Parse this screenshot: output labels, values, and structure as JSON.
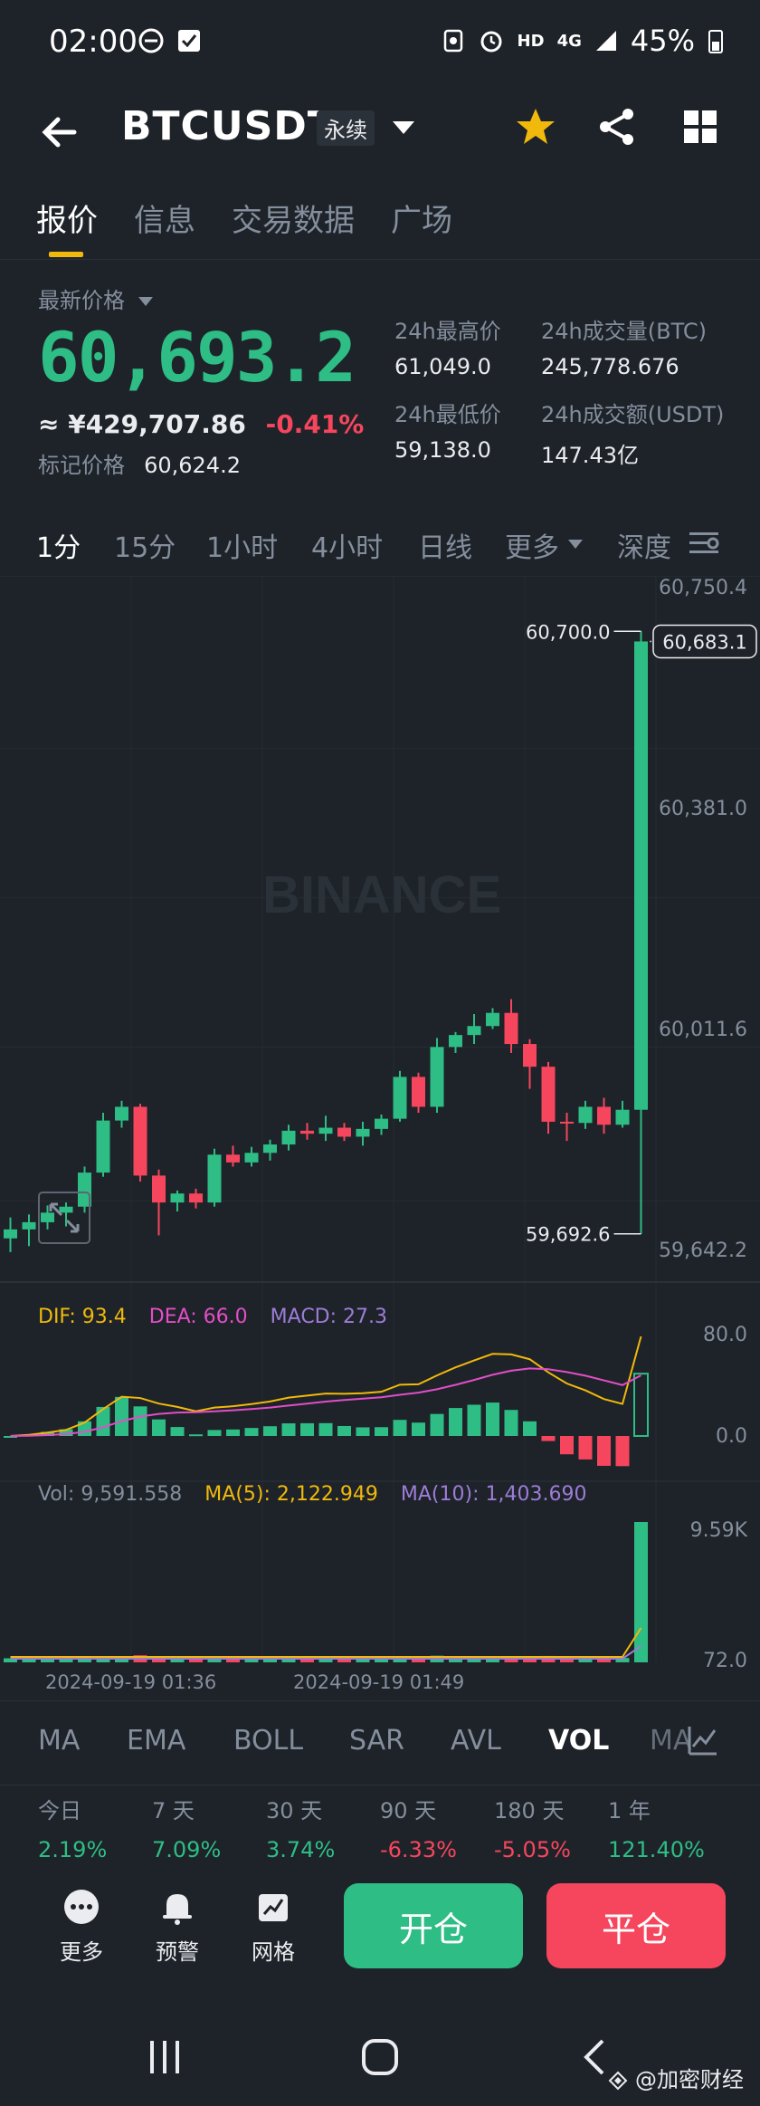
{
  "status": {
    "time": "02:00",
    "signal": "HD",
    "network": "4G",
    "battery": "45%"
  },
  "header": {
    "pair": "BTCUSDT",
    "contract_type": "永续"
  },
  "tabs": [
    "报价",
    "信息",
    "交易数据",
    "广场"
  ],
  "price": {
    "latest_label": "最新价格",
    "last": "60,693.2",
    "cny": "≈ ¥429,707.86",
    "change": "-0.41%",
    "mark_label": "标记价格",
    "mark": "60,624.2"
  },
  "stats": {
    "high_label": "24h最高价",
    "high": "61,049.0",
    "low_label": "24h最低价",
    "low": "59,138.0",
    "vol_btc_label": "24h成交量(BTC)",
    "vol_btc": "245,778.676",
    "vol_usdt_label": "24h成交额(USDT)",
    "vol_usdt": "147.43亿"
  },
  "intervals": [
    "1分",
    "15分",
    "1小时",
    "4小时",
    "日线",
    "更多",
    "深度"
  ],
  "chart_data": {
    "type": "candlestick",
    "watermark": "BINANCE",
    "y_ticks": [
      "60,750.4",
      "60,381.0",
      "60,011.6",
      "59,642.2"
    ],
    "last_price_tag": "60,683.1",
    "high_marker": "60,700.0",
    "low_marker": "59,692.6",
    "candles": [
      {
        "o": 59685,
        "h": 59720,
        "l": 59662,
        "c": 59700
      },
      {
        "o": 59700,
        "h": 59725,
        "l": 59672,
        "c": 59712
      },
      {
        "o": 59712,
        "h": 59740,
        "l": 59700,
        "c": 59728
      },
      {
        "o": 59728,
        "h": 59745,
        "l": 59705,
        "c": 59738
      },
      {
        "o": 59738,
        "h": 59805,
        "l": 59728,
        "c": 59795
      },
      {
        "o": 59795,
        "h": 59895,
        "l": 59788,
        "c": 59882
      },
      {
        "o": 59882,
        "h": 59915,
        "l": 59870,
        "c": 59905
      },
      {
        "o": 59905,
        "h": 59910,
        "l": 59780,
        "c": 59790
      },
      {
        "o": 59790,
        "h": 59800,
        "l": 59690,
        "c": 59745
      },
      {
        "o": 59745,
        "h": 59765,
        "l": 59730,
        "c": 59760
      },
      {
        "o": 59760,
        "h": 59768,
        "l": 59735,
        "c": 59745
      },
      {
        "o": 59745,
        "h": 59835,
        "l": 59738,
        "c": 59825
      },
      {
        "o": 59825,
        "h": 59840,
        "l": 59805,
        "c": 59812
      },
      {
        "o": 59812,
        "h": 59838,
        "l": 59805,
        "c": 59828
      },
      {
        "o": 59828,
        "h": 59850,
        "l": 59815,
        "c": 59842
      },
      {
        "o": 59842,
        "h": 59875,
        "l": 59832,
        "c": 59865
      },
      {
        "o": 59865,
        "h": 59878,
        "l": 59850,
        "c": 59860
      },
      {
        "o": 59860,
        "h": 59890,
        "l": 59848,
        "c": 59870
      },
      {
        "o": 59870,
        "h": 59878,
        "l": 59848,
        "c": 59855
      },
      {
        "o": 59855,
        "h": 59880,
        "l": 59840,
        "c": 59868
      },
      {
        "o": 59868,
        "h": 59892,
        "l": 59858,
        "c": 59885
      },
      {
        "o": 59885,
        "h": 59965,
        "l": 59880,
        "c": 59955
      },
      {
        "o": 59955,
        "h": 59962,
        "l": 59895,
        "c": 59905
      },
      {
        "o": 59905,
        "h": 60020,
        "l": 59895,
        "c": 60005
      },
      {
        "o": 60005,
        "h": 60030,
        "l": 59995,
        "c": 60025
      },
      {
        "o": 60025,
        "h": 60060,
        "l": 60010,
        "c": 60040
      },
      {
        "o": 60040,
        "h": 60070,
        "l": 60035,
        "c": 60062
      },
      {
        "o": 60062,
        "h": 60085,
        "l": 59995,
        "c": 60010
      },
      {
        "o": 60010,
        "h": 60018,
        "l": 59935,
        "c": 59972
      },
      {
        "o": 59972,
        "h": 59980,
        "l": 59860,
        "c": 59880
      },
      {
        "o": 59880,
        "h": 59895,
        "l": 59848,
        "c": 59878
      },
      {
        "o": 59878,
        "h": 59915,
        "l": 59868,
        "c": 59905
      },
      {
        "o": 59905,
        "h": 59920,
        "l": 59860,
        "c": 59875
      },
      {
        "o": 59875,
        "h": 59915,
        "l": 59870,
        "c": 59900
      },
      {
        "o": 59900,
        "h": 60700,
        "l": 59692.6,
        "c": 60683.1
      }
    ]
  },
  "macd": {
    "dif": "DIF: 93.4",
    "dea": "DEA: 66.0",
    "macd": "MACD: 27.3",
    "top": "80.0",
    "zero": "0.0"
  },
  "volume": {
    "vol": "Vol: 9,591.558",
    "ma5": "MA(5): 2,122.949",
    "ma10": "MA(10): 1,403.690",
    "top": "9.59K",
    "bottom": "72.0"
  },
  "time_labels": [
    "2024-09-19 01:36",
    "2024-09-19 01:49"
  ],
  "indicator_tabs": [
    "MA",
    "EMA",
    "BOLL",
    "SAR",
    "AVL",
    "VOL",
    "MA"
  ],
  "performance": [
    {
      "period": "今日",
      "value": "2.19%"
    },
    {
      "period": "7 天",
      "value": "7.09%"
    },
    {
      "period": "30 天",
      "value": "3.74%"
    },
    {
      "period": "90 天",
      "value": "-6.33%"
    },
    {
      "period": "180 天",
      "value": "-5.05%"
    },
    {
      "period": "1 年",
      "value": "121.40%"
    }
  ],
  "bottom": {
    "more": "更多",
    "alert": "预警",
    "grid": "网格",
    "open": "开仓",
    "close": "平仓"
  },
  "watermark_footer": "@加密财经",
  "colors": {
    "up": "#2ebd85",
    "down": "#f6465d",
    "accent": "#f0b90b",
    "bg": "#1e2329"
  }
}
